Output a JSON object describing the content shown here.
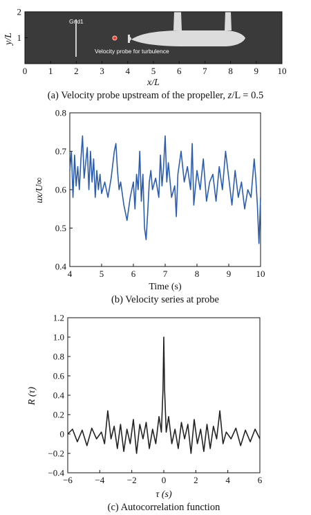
{
  "panels": [
    {
      "id": "a",
      "caption_prefix": "(a) Velocity probe upstream of the propeller, ",
      "caption_var": "z",
      "caption_suffix": "/L = 0.5",
      "xlabel": "x/L",
      "ylabel": "y/L",
      "grid_label": "Grid1",
      "probe_label": "Velocity probe for turbulence",
      "background_color": "#3a3a3a",
      "hull_color": "#dcdcdc",
      "probe_color": "#ff3b2f",
      "grid_x": 2.0,
      "probe": {
        "x": 3.5,
        "y": 1.0
      }
    },
    {
      "id": "b",
      "caption": "(b) Velocity series at probe",
      "xlabel": "Time (s)",
      "ylabel": "ux/U∞"
    },
    {
      "id": "c",
      "caption": "(c) Autocorrelation function",
      "xlabel": "τ (s)",
      "ylabel": "R (τ)"
    }
  ],
  "chart_data": [
    {
      "type": "scatter",
      "xlabel": "x/L",
      "ylabel": "y/L",
      "xlim": [
        0,
        10
      ],
      "ylim": [
        0,
        2
      ],
      "xticks": [
        "0",
        "1",
        "2",
        "3",
        "4",
        "5",
        "6",
        "7",
        "8",
        "9",
        "10"
      ],
      "yticks": [
        "1",
        "2"
      ],
      "grid_line_x": 2.0,
      "probe": {
        "x": 3.5,
        "y": 1.0
      },
      "annotations": [
        "Grid1",
        "Velocity probe for turbulence"
      ]
    },
    {
      "type": "line",
      "xlabel": "Time (s)",
      "ylabel": "ux/U∞",
      "xlim": [
        4,
        10
      ],
      "ylim": [
        0.4,
        0.8
      ],
      "xticks": [
        "4",
        "5",
        "6",
        "7",
        "8",
        "9",
        "10"
      ],
      "yticks": [
        "0.4",
        "0.5",
        "0.6",
        "0.7",
        "0.8"
      ],
      "color": "#2a5db0",
      "series": [
        {
          "x": [
            4.0,
            4.05,
            4.1,
            4.15,
            4.2,
            4.25,
            4.3,
            4.35,
            4.4,
            4.45,
            4.5,
            4.55,
            4.6,
            4.65,
            4.7,
            4.75,
            4.8,
            4.85,
            4.9,
            4.95,
            5.0,
            5.1,
            5.2,
            5.3,
            5.4,
            5.45,
            5.5,
            5.55,
            5.6,
            5.7,
            5.8,
            5.9,
            6.0,
            6.05,
            6.1,
            6.15,
            6.2,
            6.25,
            6.3,
            6.35,
            6.4,
            6.45,
            6.5,
            6.55,
            6.6,
            6.7,
            6.8,
            6.85,
            6.9,
            6.95,
            7.0,
            7.05,
            7.1,
            7.2,
            7.3,
            7.35,
            7.4,
            7.5,
            7.6,
            7.7,
            7.8,
            7.85,
            7.9,
            8.0,
            8.1,
            8.2,
            8.3,
            8.4,
            8.5,
            8.6,
            8.7,
            8.8,
            8.9,
            9.0,
            9.1,
            9.2,
            9.3,
            9.4,
            9.5,
            9.6,
            9.7,
            9.8,
            9.85,
            9.9,
            9.95,
            10.0
          ],
          "y": [
            0.65,
            0.7,
            0.58,
            0.69,
            0.61,
            0.66,
            0.6,
            0.68,
            0.74,
            0.63,
            0.67,
            0.71,
            0.6,
            0.7,
            0.62,
            0.68,
            0.58,
            0.65,
            0.6,
            0.64,
            0.59,
            0.62,
            0.58,
            0.63,
            0.7,
            0.72,
            0.65,
            0.6,
            0.62,
            0.56,
            0.52,
            0.58,
            0.62,
            0.55,
            0.64,
            0.6,
            0.7,
            0.57,
            0.64,
            0.5,
            0.47,
            0.54,
            0.62,
            0.65,
            0.6,
            0.63,
            0.58,
            0.69,
            0.61,
            0.66,
            0.74,
            0.62,
            0.67,
            0.58,
            0.61,
            0.53,
            0.64,
            0.7,
            0.62,
            0.66,
            0.6,
            0.72,
            0.56,
            0.65,
            0.6,
            0.68,
            0.57,
            0.62,
            0.64,
            0.57,
            0.66,
            0.6,
            0.7,
            0.63,
            0.56,
            0.65,
            0.58,
            0.62,
            0.55,
            0.6,
            0.58,
            0.68,
            0.63,
            0.56,
            0.46,
            0.58
          ]
        }
      ]
    },
    {
      "type": "line",
      "xlabel": "τ (s)",
      "ylabel": "R (τ)",
      "xlim": [
        -6,
        6
      ],
      "ylim": [
        -0.4,
        1.2
      ],
      "xticks": [
        "−6",
        "−4",
        "−2",
        "0",
        "2",
        "4",
        "6"
      ],
      "yticks": [
        "−0.4",
        "−0.2",
        "0",
        "0.2",
        "0.4",
        "0.6",
        "0.8",
        "1.0",
        "1.2"
      ],
      "color": "#222222",
      "series": [
        {
          "x": [
            -6.0,
            -5.7,
            -5.4,
            -5.1,
            -4.8,
            -4.5,
            -4.2,
            -3.9,
            -3.7,
            -3.5,
            -3.3,
            -3.1,
            -2.9,
            -2.7,
            -2.5,
            -2.3,
            -2.1,
            -1.9,
            -1.7,
            -1.5,
            -1.3,
            -1.1,
            -0.9,
            -0.7,
            -0.5,
            -0.3,
            -0.15,
            -0.05,
            0.0,
            0.05,
            0.15,
            0.3,
            0.5,
            0.7,
            0.9,
            1.1,
            1.3,
            1.5,
            1.7,
            1.9,
            2.1,
            2.3,
            2.5,
            2.7,
            2.9,
            3.1,
            3.3,
            3.5,
            3.7,
            3.9,
            4.2,
            4.5,
            4.8,
            5.1,
            5.4,
            5.7,
            6.0
          ],
          "y": [
            0.0,
            0.05,
            -0.08,
            0.04,
            -0.12,
            0.06,
            -0.05,
            0.02,
            -0.1,
            0.24,
            -0.05,
            0.08,
            -0.15,
            0.1,
            -0.18,
            0.05,
            -0.1,
            0.15,
            -0.2,
            0.1,
            -0.05,
            0.12,
            -0.15,
            0.05,
            -0.1,
            0.18,
            0.02,
            0.45,
            1.0,
            0.45,
            0.02,
            0.18,
            -0.1,
            0.05,
            -0.15,
            0.12,
            -0.05,
            0.1,
            -0.2,
            0.15,
            -0.1,
            0.05,
            -0.18,
            0.1,
            -0.15,
            0.08,
            -0.05,
            0.24,
            -0.1,
            0.02,
            -0.05,
            0.06,
            -0.12,
            0.04,
            -0.08,
            0.05,
            -0.05
          ]
        }
      ]
    }
  ]
}
